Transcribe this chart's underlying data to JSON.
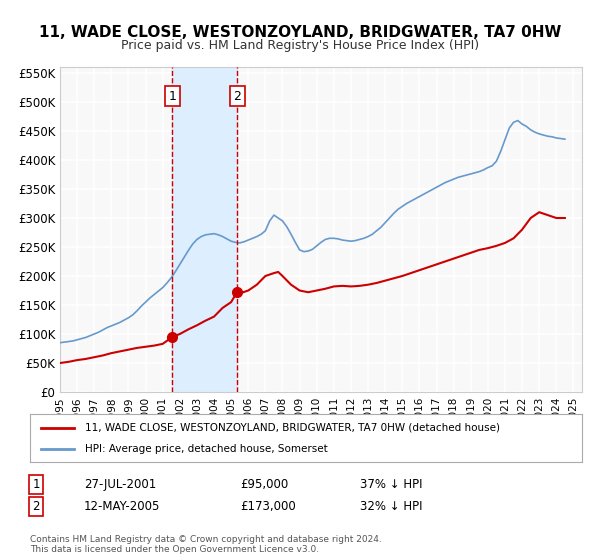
{
  "title": "11, WADE CLOSE, WESTONZOYLAND, BRIDGWATER, TA7 0HW",
  "subtitle": "Price paid vs. HM Land Registry's House Price Index (HPI)",
  "xlim": [
    1995.0,
    2025.5
  ],
  "ylim": [
    0,
    560000
  ],
  "yticks": [
    0,
    50000,
    100000,
    150000,
    200000,
    250000,
    300000,
    350000,
    400000,
    450000,
    500000,
    550000
  ],
  "ytick_labels": [
    "£0",
    "£50K",
    "£100K",
    "£150K",
    "£200K",
    "£250K",
    "£300K",
    "£350K",
    "£400K",
    "£450K",
    "£500K",
    "£550K"
  ],
  "background_color": "#f8f8f8",
  "grid_color": "#ffffff",
  "sale1_x": 2001.57,
  "sale1_y": 95000,
  "sale1_label": "1",
  "sale1_date": "27-JUL-2001",
  "sale1_price": "£95,000",
  "sale1_hpi": "37% ↓ HPI",
  "sale2_x": 2005.36,
  "sale2_y": 173000,
  "sale2_label": "2",
  "sale2_date": "12-MAY-2005",
  "sale2_price": "£173,000",
  "sale2_hpi": "32% ↓ HPI",
  "shade_x1": 2001.57,
  "shade_x2": 2005.36,
  "red_line_color": "#cc0000",
  "blue_line_color": "#6699cc",
  "shade_color": "#ddeeff",
  "vline_color": "#cc0000",
  "legend_label_red": "11, WADE CLOSE, WESTONZOYLAND, BRIDGWATER, TA7 0HW (detached house)",
  "legend_label_blue": "HPI: Average price, detached house, Somerset",
  "footer": "Contains HM Land Registry data © Crown copyright and database right 2024.\nThis data is licensed under the Open Government Licence v3.0.",
  "hpi_x": [
    1995.0,
    1995.25,
    1995.5,
    1995.75,
    1996.0,
    1996.25,
    1996.5,
    1996.75,
    1997.0,
    1997.25,
    1997.5,
    1997.75,
    1998.0,
    1998.25,
    1998.5,
    1998.75,
    1999.0,
    1999.25,
    1999.5,
    1999.75,
    2000.0,
    2000.25,
    2000.5,
    2000.75,
    2001.0,
    2001.25,
    2001.5,
    2001.75,
    2002.0,
    2002.25,
    2002.5,
    2002.75,
    2003.0,
    2003.25,
    2003.5,
    2003.75,
    2004.0,
    2004.25,
    2004.5,
    2004.75,
    2005.0,
    2005.25,
    2005.5,
    2005.75,
    2006.0,
    2006.25,
    2006.5,
    2006.75,
    2007.0,
    2007.25,
    2007.5,
    2007.75,
    2008.0,
    2008.25,
    2008.5,
    2008.75,
    2009.0,
    2009.25,
    2009.5,
    2009.75,
    2010.0,
    2010.25,
    2010.5,
    2010.75,
    2011.0,
    2011.25,
    2011.5,
    2011.75,
    2012.0,
    2012.25,
    2012.5,
    2012.75,
    2013.0,
    2013.25,
    2013.5,
    2013.75,
    2014.0,
    2014.25,
    2014.5,
    2014.75,
    2015.0,
    2015.25,
    2015.5,
    2015.75,
    2016.0,
    2016.25,
    2016.5,
    2016.75,
    2017.0,
    2017.25,
    2017.5,
    2017.75,
    2018.0,
    2018.25,
    2018.5,
    2018.75,
    2019.0,
    2019.25,
    2019.5,
    2019.75,
    2020.0,
    2020.25,
    2020.5,
    2020.75,
    2021.0,
    2021.25,
    2021.5,
    2021.75,
    2022.0,
    2022.25,
    2022.5,
    2022.75,
    2023.0,
    2023.25,
    2023.5,
    2023.75,
    2024.0,
    2024.25,
    2024.5
  ],
  "hpi_y": [
    85000,
    86000,
    87000,
    88000,
    90000,
    92000,
    94000,
    97000,
    100000,
    103000,
    107000,
    111000,
    114000,
    117000,
    120000,
    124000,
    128000,
    133000,
    140000,
    148000,
    155000,
    162000,
    168000,
    174000,
    180000,
    188000,
    197000,
    208000,
    220000,
    232000,
    244000,
    255000,
    263000,
    268000,
    271000,
    272000,
    273000,
    271000,
    268000,
    264000,
    260000,
    258000,
    257000,
    259000,
    262000,
    265000,
    268000,
    272000,
    278000,
    295000,
    305000,
    300000,
    295000,
    285000,
    272000,
    258000,
    245000,
    242000,
    243000,
    246000,
    252000,
    258000,
    263000,
    265000,
    265000,
    264000,
    262000,
    261000,
    260000,
    261000,
    263000,
    265000,
    268000,
    272000,
    278000,
    284000,
    292000,
    300000,
    308000,
    315000,
    320000,
    325000,
    329000,
    333000,
    337000,
    341000,
    345000,
    349000,
    353000,
    357000,
    361000,
    364000,
    367000,
    370000,
    372000,
    374000,
    376000,
    378000,
    380000,
    383000,
    387000,
    390000,
    398000,
    415000,
    435000,
    455000,
    465000,
    468000,
    462000,
    458000,
    452000,
    448000,
    445000,
    443000,
    441000,
    440000,
    438000,
    437000,
    436000
  ],
  "red_x": [
    1995.0,
    1995.5,
    1996.0,
    1996.5,
    1997.0,
    1997.5,
    1998.0,
    1998.5,
    1999.0,
    1999.5,
    2000.0,
    2000.5,
    2001.0,
    2001.57,
    2001.75,
    2002.0,
    2002.5,
    2003.0,
    2003.5,
    2004.0,
    2004.5,
    2005.0,
    2005.36,
    2005.5,
    2006.0,
    2006.5,
    2007.0,
    2007.5,
    2007.75,
    2008.0,
    2008.5,
    2009.0,
    2009.5,
    2010.0,
    2010.5,
    2011.0,
    2011.5,
    2012.0,
    2012.5,
    2013.0,
    2013.5,
    2014.0,
    2014.5,
    2015.0,
    2015.5,
    2016.0,
    2016.5,
    2017.0,
    2017.5,
    2018.0,
    2018.5,
    2019.0,
    2019.5,
    2020.0,
    2020.5,
    2021.0,
    2021.5,
    2022.0,
    2022.5,
    2023.0,
    2023.5,
    2024.0,
    2024.5
  ],
  "red_y": [
    50000,
    52000,
    55000,
    57000,
    60000,
    63000,
    67000,
    70000,
    73000,
    76000,
    78000,
    80000,
    83000,
    95000,
    97000,
    100000,
    108000,
    115000,
    123000,
    130000,
    145000,
    155000,
    173000,
    170000,
    175000,
    185000,
    200000,
    205000,
    207000,
    200000,
    185000,
    175000,
    172000,
    175000,
    178000,
    182000,
    183000,
    182000,
    183000,
    185000,
    188000,
    192000,
    196000,
    200000,
    205000,
    210000,
    215000,
    220000,
    225000,
    230000,
    235000,
    240000,
    245000,
    248000,
    252000,
    257000,
    265000,
    280000,
    300000,
    310000,
    305000,
    300000,
    300000
  ]
}
